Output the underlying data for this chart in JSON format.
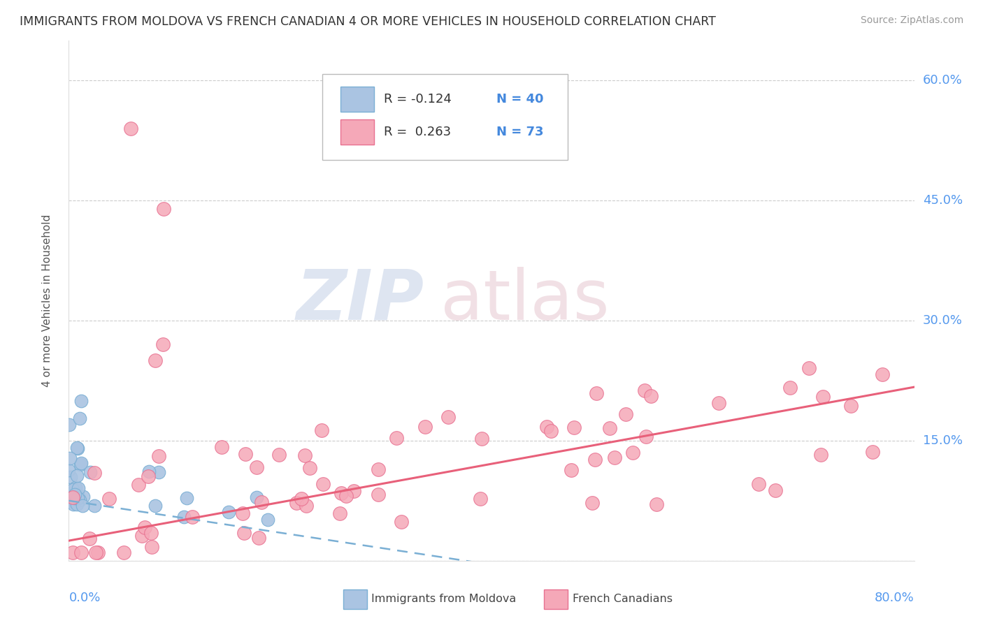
{
  "title": "IMMIGRANTS FROM MOLDOVA VS FRENCH CANADIAN 4 OR MORE VEHICLES IN HOUSEHOLD CORRELATION CHART",
  "source": "Source: ZipAtlas.com",
  "ylabel": "4 or more Vehicles in Household",
  "ytick_vals": [
    0.0,
    0.15,
    0.3,
    0.45,
    0.6
  ],
  "ytick_labels": [
    "",
    "15.0%",
    "30.0%",
    "45.0%",
    "60.0%"
  ],
  "xrange": [
    0.0,
    0.8
  ],
  "yrange": [
    0.0,
    0.65
  ],
  "legend_r1": "R = -0.124",
  "legend_n1": "N = 40",
  "legend_r2": "R =  0.263",
  "legend_n2": "N = 73",
  "moldova_color": "#aac4e2",
  "moldova_edge": "#7aafd4",
  "french_color": "#f5a8b8",
  "french_edge": "#e87090",
  "trend_moldova_color": "#7aafd4",
  "trend_french_color": "#e8607a",
  "watermark_zip_color": "#d0d8e8",
  "watermark_atlas_color": "#d8c8d0",
  "title_color": "#333333",
  "source_color": "#999999",
  "ylabel_color": "#555555",
  "ytick_color": "#5599ee",
  "grid_color": "#cccccc",
  "legend_text_color": "#333333",
  "legend_n_color": "#4488dd",
  "moldova_seed": 10,
  "french_seed": 20
}
